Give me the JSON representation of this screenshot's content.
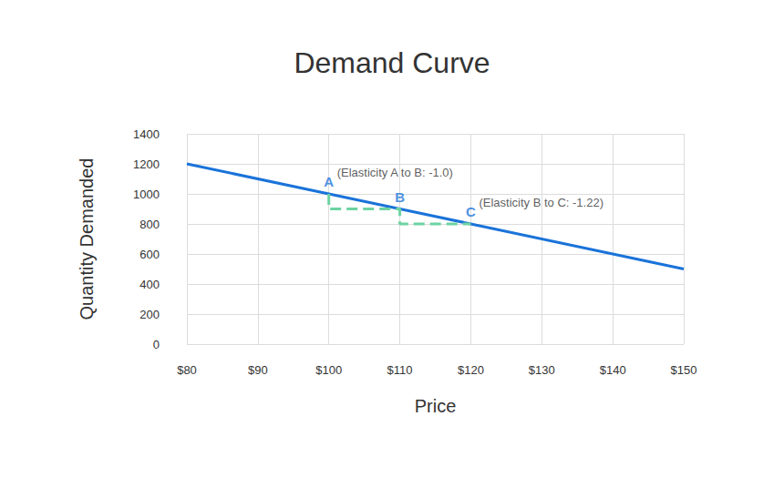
{
  "chart_data": {
    "type": "line",
    "title": "Demand Curve",
    "x_label": "Price",
    "y_label": "Quantity Demanded",
    "xlim": [
      80,
      150
    ],
    "xticks": [
      {
        "value": 80,
        "label": "$80"
      },
      {
        "value": 90,
        "label": "$90"
      },
      {
        "value": 100,
        "label": "$100"
      },
      {
        "value": 110,
        "label": "$110"
      },
      {
        "value": 120,
        "label": "$120"
      },
      {
        "value": 130,
        "label": "$130"
      },
      {
        "value": 140,
        "label": "$140"
      },
      {
        "value": 150,
        "label": "$150"
      }
    ],
    "ylim": [
      0,
      1400
    ],
    "yticks": [
      0,
      200,
      400,
      600,
      800,
      1000,
      1200,
      1400
    ],
    "grid": true,
    "series": [
      {
        "type": "line",
        "color": "#1a73d9",
        "line_style": "solid",
        "x": [
          80,
          100,
          110,
          120,
          150
        ],
        "values": [
          1200,
          1000,
          900,
          800,
          500
        ]
      },
      {
        "type": "line",
        "color": "#6dd3a1",
        "line_style": "dashed",
        "x": [
          100,
          100,
          110,
          110,
          120
        ],
        "values": [
          1000,
          900,
          900,
          800,
          800
        ]
      }
    ],
    "points": [
      {
        "label": "A",
        "x": 100,
        "y": 1000,
        "note": "(Elasticity A to B: -1.0)"
      },
      {
        "label": "B",
        "x": 110,
        "y": 900
      },
      {
        "label": "C",
        "x": 120,
        "y": 800,
        "note": "(Elasticity B to C: -1.22)"
      }
    ],
    "point_color": "#1a73d9"
  }
}
